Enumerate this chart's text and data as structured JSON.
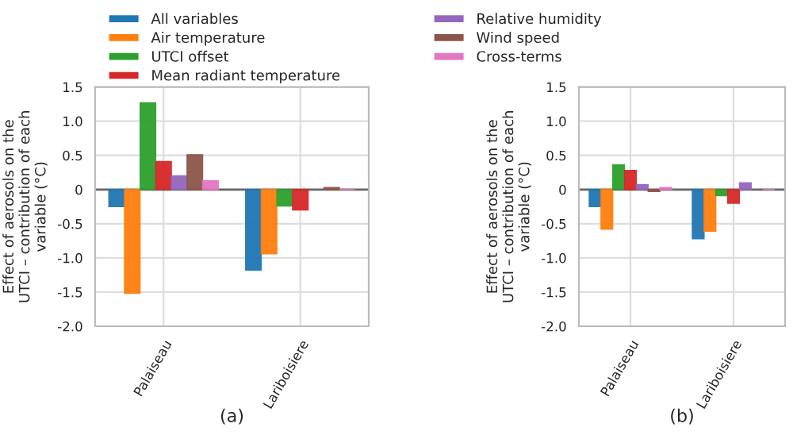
{
  "chart_data": [
    {
      "type": "bar",
      "categories": [
        "Palaiseau",
        "Lariboisiere"
      ],
      "ylabel": "Effect of aerosols on the\nUTCI – contribution of each\nvariable (°C)",
      "ylim": [
        -2,
        1.5
      ],
      "yticks": [
        {
          "value": -2,
          "label": "-2.0"
        },
        {
          "value": -1.5,
          "label": "-1.5"
        },
        {
          "value": -1,
          "label": "-1.0"
        },
        {
          "value": -0.5,
          "label": "-0.5"
        },
        0,
        0.5,
        {
          "value": 1,
          "label": "1.0"
        },
        1.5
      ],
      "grid": true,
      "legend": "top",
      "annotations": [
        "(a)"
      ],
      "series": [
        {
          "name": "All variables",
          "color": "#1f77b4",
          "values": [
            -0.25,
            -1.18
          ]
        },
        {
          "name": "Air temperature",
          "color": "#ff7f0e",
          "values": [
            -1.52,
            -0.94
          ]
        },
        {
          "name": "UTCI offset",
          "color": "#2ca02c",
          "values": [
            1.27,
            -0.24
          ]
        },
        {
          "name": "Mean radiant temperature",
          "color": "#d62728",
          "values": [
            0.41,
            -0.3
          ]
        },
        {
          "color": "#9467bd",
          "values": [
            0.2,
            null
          ]
        },
        {
          "color": "#8c564b",
          "values": [
            0.51,
            0.03
          ]
        },
        {
          "color": "#e377c2",
          "values": [
            0.13,
            0.0
          ]
        }
      ]
    },
    {
      "type": "bar",
      "categories": [
        "Palaiseau",
        "Lariboisiere"
      ],
      "ylabel": "Effect of aerosols on the\nUTCI – contribution of each\nvariable (°C)",
      "ylim": [
        -2,
        1.5
      ],
      "yticks": [
        {
          "value": -2,
          "label": "-2.0"
        },
        {
          "value": -1.5,
          "label": "-1.5"
        },
        {
          "value": -1,
          "label": "-1.0"
        },
        {
          "value": -0.5,
          "label": "-0.5"
        },
        0,
        0.5,
        {
          "value": 1,
          "label": "1.0"
        },
        1.5
      ],
      "grid": true,
      "legend": "top",
      "annotations": [
        "(b)"
      ],
      "series": [
        {
          "color": "#1f77b4",
          "values": [
            -0.25,
            -0.72
          ]
        },
        {
          "color": "#ff7f0e",
          "values": [
            -0.58,
            -0.61
          ]
        },
        {
          "color": "#2ca02c",
          "values": [
            0.36,
            -0.09
          ]
        },
        {
          "color": "#d62728",
          "values": [
            0.28,
            -0.2
          ]
        },
        {
          "name": "Relative humidity",
          "color": "#9467bd",
          "values": [
            0.07,
            0.1
          ]
        },
        {
          "name": "Wind speed",
          "color": "#8c564b",
          "values": [
            -0.03,
            null
          ]
        },
        {
          "name": "Cross-terms",
          "color": "#e377c2",
          "values": [
            0.03,
            0.0
          ]
        }
      ]
    }
  ]
}
